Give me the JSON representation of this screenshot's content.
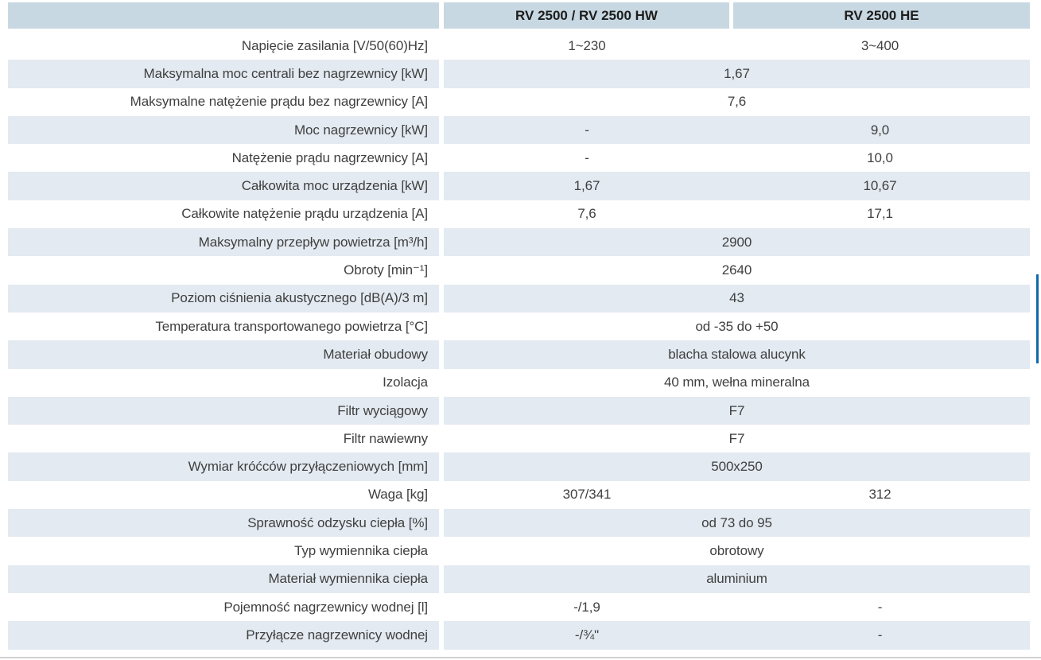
{
  "table": {
    "header": {
      "col1": "RV 2500 / RV 2500 HW",
      "col2": "RV 2500 HE"
    },
    "rows": [
      {
        "label": "Napięcie zasilania [V/50(60)Hz]",
        "type": "two",
        "v1": "1~230",
        "v2": "3~400"
      },
      {
        "label": "Maksymalna moc centrali bez nagrzewnicy [kW]",
        "type": "span",
        "value": "1,67"
      },
      {
        "label": "Maksymalne natężenie prądu bez nagrzewnicy [A]",
        "type": "span",
        "value": "7,6"
      },
      {
        "label": "Moc nagrzewnicy [kW]",
        "type": "two",
        "v1": "-",
        "v2": "9,0"
      },
      {
        "label": "Natężenie prądu nagrzewnicy [A]",
        "type": "two",
        "v1": "-",
        "v2": "10,0"
      },
      {
        "label": "Całkowita moc urządzenia [kW]",
        "type": "two",
        "v1": "1,67",
        "v2": "10,67"
      },
      {
        "label": "Całkowite natężenie prądu urządzenia [A]",
        "type": "two",
        "v1": "7,6",
        "v2": "17,1"
      },
      {
        "label": "Maksymalny przepływ powietrza [m³/h]",
        "type": "span",
        "value": "2900"
      },
      {
        "label": "Obroty [min⁻¹]",
        "type": "span",
        "value": "2640"
      },
      {
        "label": "Poziom ciśnienia akustycznego [dB(A)/3 m]",
        "type": "span",
        "value": "43"
      },
      {
        "label": "Temperatura transportowanego powietrza [°C]",
        "type": "span",
        "value": "od -35 do +50"
      },
      {
        "label": "Materiał obudowy",
        "type": "span",
        "value": "blacha stalowa alucynk"
      },
      {
        "label": "Izolacja",
        "type": "span",
        "value": "40 mm, wełna mineralna"
      },
      {
        "label": "Filtr wyciągowy",
        "type": "span",
        "value": "F7"
      },
      {
        "label": "Filtr nawiewny",
        "type": "span",
        "value": "F7"
      },
      {
        "label": "Wymiar króćców przyłączeniowych [mm]",
        "type": "span",
        "value": "500x250"
      },
      {
        "label": "Waga [kg]",
        "type": "two",
        "v1": "307/341",
        "v2": "312"
      },
      {
        "label": "Sprawność odzysku ciepła [%]",
        "type": "span",
        "value": "od 73 do 95"
      },
      {
        "label": "Typ wymiennika ciepła",
        "type": "span",
        "value": "obrotowy"
      },
      {
        "label": "Materiał wymiennika ciepła",
        "type": "span",
        "value": "aluminium"
      },
      {
        "label": "Pojemność nagrzewnicy wodnej [l]",
        "type": "two",
        "v1": "-/1,9",
        "v2": "-"
      },
      {
        "label": "Przyłącze nagrzewnicy wodnej",
        "type": "two",
        "v1": "-/¾\"",
        "v2": "-"
      }
    ],
    "colors": {
      "header_bg": "#c8d8e2",
      "stripe_bg": "#e3eaf1",
      "text": "#404040",
      "header_text": "#1d1d1d",
      "accent_bar": "#1569a9",
      "bottom_rule": "#d2d2d2"
    }
  }
}
